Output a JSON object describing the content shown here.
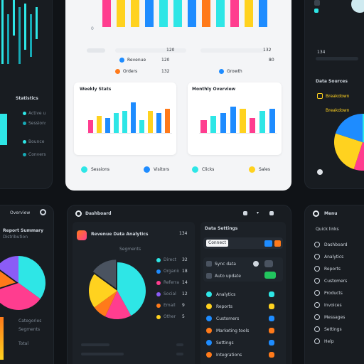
{
  "colors": {
    "cyan": "#2ee6e6",
    "yellow": "#ffd21f",
    "pink": "#ff3d8f",
    "blue": "#1e8cff",
    "orange": "#ff7a1a",
    "green": "#22c55e",
    "violet": "#8b5cf6"
  },
  "top_center": {
    "axis_zero": "0",
    "legend": [
      {
        "label": "Revenue",
        "value": "120",
        "color": "#1e8cff"
      },
      {
        "label": "Orders",
        "value": "132",
        "color": "#ff7a1a"
      },
      {
        "label": "Growth",
        "value": "80",
        "color": "#1e8cff"
      }
    ],
    "charts": [
      {
        "title": "Weekly Stats",
        "values": [
          3,
          4,
          3.5,
          4.5,
          5,
          7,
          3,
          5,
          4.5,
          5.5
        ],
        "colors": [
          "#ff3d8f",
          "#ffd21f",
          "#1e8cff",
          "#2ee6e6",
          "#2ee6e6",
          "#1e8cff",
          "#2ee6e6",
          "#ffd21f",
          "#1e8cff",
          "#ff7a1a"
        ],
        "legend": [
          {
            "label": "Sessions",
            "color": "#2ee6e6"
          },
          {
            "label": "Visitors",
            "color": "#1e8cff"
          }
        ]
      },
      {
        "title": "Monthly Overview",
        "values": [
          3,
          4,
          4.5,
          6,
          5.5,
          3.5,
          5,
          5.5
        ],
        "colors": [
          "#ff3d8f",
          "#2ee6e6",
          "#1e8cff",
          "#1e8cff",
          "#ffd21f",
          "#ff3d8f",
          "#2ee6e6",
          "#1e8cff"
        ],
        "legend": [
          {
            "label": "Clicks",
            "color": "#2ee6e6"
          },
          {
            "label": "Sales",
            "color": "#ffd21f"
          }
        ]
      }
    ]
  },
  "left_top": {
    "title": "Statistics",
    "legend": [
      "Active users",
      "Sessions",
      "Bounce rate",
      "Conversions"
    ]
  },
  "right_top": {
    "value": "134",
    "title": "Data Sources",
    "subtitle": "Breakdown"
  },
  "bottom_left": {
    "header": "Overview",
    "card_title": "Report Summary",
    "card_sub": "Distribution",
    "footer": [
      "Categories",
      "Segments",
      "Total"
    ]
  },
  "bottom_center": {
    "header": "Dashboard",
    "chart_title": "Revenue Data Analytics",
    "chart_value": "134",
    "chart_sub": "Segments",
    "pie": [
      {
        "label": "Cyan",
        "value": 42,
        "color": "#2ee6e6"
      },
      {
        "label": "Pink",
        "value": 15,
        "color": "#ff3d8f"
      },
      {
        "label": "Orange",
        "value": 8,
        "color": "#ff7a1a"
      },
      {
        "label": "Yellow",
        "value": 20,
        "color": "#ffd21f"
      },
      {
        "label": "Slate",
        "value": 15,
        "color": "#4a5360"
      }
    ],
    "pie_legend": [
      {
        "label": "Direct",
        "value": "32",
        "color": "#2ee6e6"
      },
      {
        "label": "Organic",
        "value": "18",
        "color": "#1e8cff"
      },
      {
        "label": "Referral",
        "value": "14",
        "color": "#ff3d8f"
      },
      {
        "label": "Social",
        "value": "12",
        "color": "#8b5cf6"
      },
      {
        "label": "Email",
        "value": "9",
        "color": "#ff7a1a"
      },
      {
        "label": "Other",
        "value": "5",
        "color": "#ffd21f"
      }
    ],
    "settings_title": "Data Settings",
    "settings_btn": "Connect",
    "settings_rows": [
      "Sync data",
      "Auto update"
    ],
    "list_items": [
      {
        "label": "Analytics",
        "color": "#2ee6e6"
      },
      {
        "label": "Reports",
        "color": "#ffd21f"
      },
      {
        "label": "Customers",
        "color": "#1e8cff"
      },
      {
        "label": "Marketing tools",
        "color": "#ff7a1a"
      },
      {
        "label": "Settings",
        "color": "#1e8cff"
      },
      {
        "label": "Integrations",
        "color": "#ff7a1a"
      }
    ]
  },
  "bottom_right": {
    "header": "Menu",
    "sub": "Quick links",
    "items": [
      "Dashboard",
      "Analytics",
      "Reports",
      "Customers",
      "Products",
      "Invoices",
      "Messages",
      "Settings",
      "Help"
    ]
  }
}
